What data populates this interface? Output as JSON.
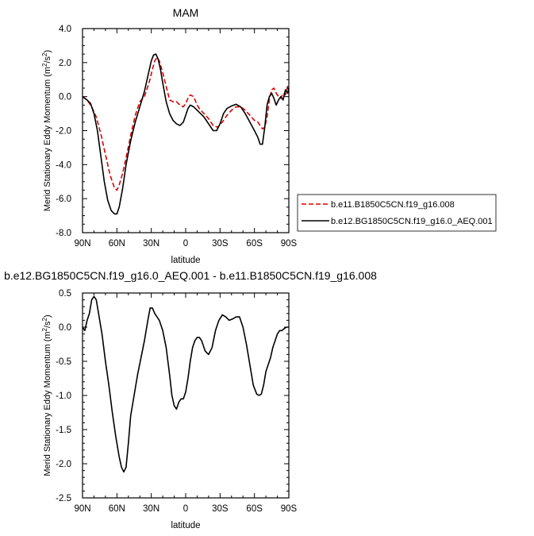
{
  "chart_data": [
    {
      "type": "line",
      "title": "MAM",
      "xlabel": "latitude",
      "ylabel": "Merid Stationary Eddy Momentum (m²/s²)",
      "ylabel_parts": [
        "Merid Stationary Eddy Momentum (m",
        "2",
        "/s",
        "2",
        ")"
      ],
      "xlim": [
        90,
        -90
      ],
      "ylim": [
        -8.0,
        4.0
      ],
      "xticks": [
        90,
        60,
        30,
        0,
        -30,
        -60,
        -90
      ],
      "xtick_labels": [
        "90N",
        "60N",
        "30N",
        "0",
        "30S",
        "60S",
        "90S"
      ],
      "yticks": [
        -8.0,
        -6.0,
        -4.0,
        -2.0,
        0.0,
        2.0,
        4.0
      ],
      "ytick_labels": [
        "-8.0",
        "-6.0",
        "-4.0",
        "-2.0",
        "0.0",
        "2.0",
        "4.0"
      ],
      "legend_position": "right, outside plot",
      "series": [
        {
          "name": "b.e11.B1850C5CN.f19_g16.008",
          "color": "#dd0000",
          "dash": "dashed",
          "x": [
            90,
            86,
            82,
            78,
            74,
            70,
            66,
            62,
            60,
            58,
            55,
            52,
            48,
            44,
            40,
            36,
            32,
            29,
            27,
            25,
            23,
            20,
            17,
            14,
            11,
            8,
            5,
            2,
            0,
            -2,
            -4,
            -7,
            -10,
            -13,
            -16,
            -20,
            -24,
            -28,
            -32,
            -36,
            -40,
            -44,
            -48,
            -52,
            -56,
            -60,
            -63,
            -65,
            -67,
            -69,
            -71,
            -73,
            -75,
            -77,
            -79,
            -81,
            -83,
            -85,
            -87,
            -89,
            -90
          ],
          "y": [
            0.0,
            -0.2,
            -0.6,
            -1.2,
            -2.2,
            -3.4,
            -4.6,
            -5.4,
            -5.5,
            -5.2,
            -4.5,
            -3.6,
            -2.3,
            -1.1,
            -0.3,
            0.0,
            0.8,
            1.6,
            2.1,
            2.3,
            2.1,
            1.4,
            0.6,
            -0.2,
            -0.3,
            -0.3,
            -0.5,
            -0.6,
            -0.4,
            -0.1,
            0.1,
            0.0,
            -0.5,
            -0.8,
            -1.0,
            -1.3,
            -1.7,
            -1.8,
            -1.5,
            -1.1,
            -0.8,
            -0.6,
            -0.6,
            -0.8,
            -1.1,
            -1.4,
            -1.5,
            -1.7,
            -1.9,
            -1.8,
            -1.2,
            -0.2,
            0.4,
            0.5,
            0.2,
            0.0,
            -0.1,
            0.2,
            0.1,
            0.6,
            0.3
          ]
        },
        {
          "name": "b.e12.BG1850C5CN.f19_g16.0_AEQ.001",
          "color": "#000000",
          "dash": "solid",
          "x": [
            90,
            88,
            86,
            83,
            80,
            77,
            74,
            71,
            68,
            65,
            62,
            60,
            58,
            55,
            52,
            48,
            44,
            40,
            36,
            33,
            30,
            28,
            26,
            24,
            22,
            20,
            17,
            14,
            11,
            8,
            5,
            2,
            0,
            -2,
            -4,
            -7,
            -10,
            -13,
            -16,
            -20,
            -24,
            -27,
            -30,
            -33,
            -36,
            -40,
            -44,
            -48,
            -52,
            -56,
            -60,
            -63,
            -65,
            -67,
            -69,
            -71,
            -73,
            -75,
            -77,
            -79,
            -81,
            -83,
            -85,
            -87,
            -89,
            -90
          ],
          "y": [
            0.0,
            -0.1,
            -0.2,
            -0.4,
            -1.0,
            -2.0,
            -3.5,
            -5.0,
            -6.1,
            -6.7,
            -6.9,
            -6.9,
            -6.5,
            -5.4,
            -4.0,
            -2.6,
            -1.5,
            -0.6,
            0.3,
            1.2,
            2.1,
            2.45,
            2.5,
            2.2,
            1.6,
            0.8,
            -0.3,
            -1.0,
            -1.4,
            -1.6,
            -1.7,
            -1.5,
            -1.1,
            -0.7,
            -0.5,
            -0.6,
            -0.8,
            -1.0,
            -1.2,
            -1.6,
            -2.0,
            -2.0,
            -1.6,
            -1.0,
            -0.7,
            -0.55,
            -0.45,
            -0.6,
            -1.0,
            -1.5,
            -2.0,
            -2.4,
            -2.8,
            -2.8,
            -1.8,
            -0.5,
            0.0,
            0.2,
            -0.1,
            -0.5,
            -0.2,
            0.0,
            -0.2,
            0.4,
            0.2,
            0.5
          ]
        }
      ]
    },
    {
      "type": "line",
      "title": "b.e12.BG1850C5CN.f19_g16.0_AEQ.001 - b.e11.B1850C5CN.f19_g16.008",
      "xlabel": "latitude",
      "ylabel": "Merid Stationary Eddy Momentum (m²/s²)",
      "ylabel_parts": [
        "Merid Stationary Eddy Momentum (m",
        "2",
        "/s",
        "2",
        ")"
      ],
      "xlim": [
        90,
        -90
      ],
      "ylim": [
        -2.5,
        0.5
      ],
      "xticks": [
        90,
        60,
        30,
        0,
        -30,
        -60,
        -90
      ],
      "xtick_labels": [
        "90N",
        "60N",
        "30N",
        "0",
        "30S",
        "60S",
        "90S"
      ],
      "yticks": [
        -2.5,
        -2.0,
        -1.5,
        -1.0,
        -0.5,
        0.0,
        0.5
      ],
      "ytick_labels": [
        "-2.5",
        "-2.0",
        "-1.5",
        "-1.0",
        "-0.5",
        "0.0",
        "0.5"
      ],
      "series": [
        {
          "color": "#000000",
          "dash": "solid",
          "x": [
            90,
            88,
            86,
            84,
            82,
            80,
            78,
            76,
            73,
            70,
            67,
            64,
            61,
            58,
            56,
            54,
            52,
            50,
            48,
            45,
            42,
            39,
            36,
            33,
            31,
            29,
            27,
            25,
            23,
            20,
            17,
            14,
            12,
            10,
            8,
            6,
            4,
            2,
            0,
            -2,
            -4,
            -6,
            -8,
            -10,
            -12,
            -14,
            -17,
            -20,
            -23,
            -26,
            -29,
            -32,
            -35,
            -38,
            -41,
            -44,
            -47,
            -50,
            -53,
            -56,
            -59,
            -62,
            -64,
            -66,
            -68,
            -70,
            -72,
            -74,
            -76,
            -78,
            -80,
            -82,
            -84,
            -86,
            -88,
            -90
          ],
          "y": [
            0.0,
            -0.05,
            0.1,
            0.2,
            0.4,
            0.45,
            0.4,
            0.2,
            -0.1,
            -0.5,
            -0.85,
            -1.25,
            -1.6,
            -1.9,
            -2.05,
            -2.12,
            -2.05,
            -1.7,
            -1.3,
            -1.0,
            -0.7,
            -0.45,
            -0.2,
            0.1,
            0.28,
            0.28,
            0.2,
            0.15,
            0.1,
            -0.05,
            -0.3,
            -0.7,
            -1.0,
            -1.15,
            -1.2,
            -1.1,
            -1.05,
            -1.05,
            -0.95,
            -0.75,
            -0.5,
            -0.3,
            -0.2,
            -0.15,
            -0.15,
            -0.2,
            -0.35,
            -0.4,
            -0.3,
            -0.05,
            0.1,
            0.18,
            0.15,
            0.1,
            0.12,
            0.15,
            0.15,
            0.0,
            -0.25,
            -0.55,
            -0.85,
            -0.98,
            -1.0,
            -0.98,
            -0.85,
            -0.65,
            -0.55,
            -0.45,
            -0.3,
            -0.2,
            -0.1,
            -0.05,
            -0.05,
            -0.02,
            0.0,
            0.0
          ]
        }
      ]
    }
  ]
}
